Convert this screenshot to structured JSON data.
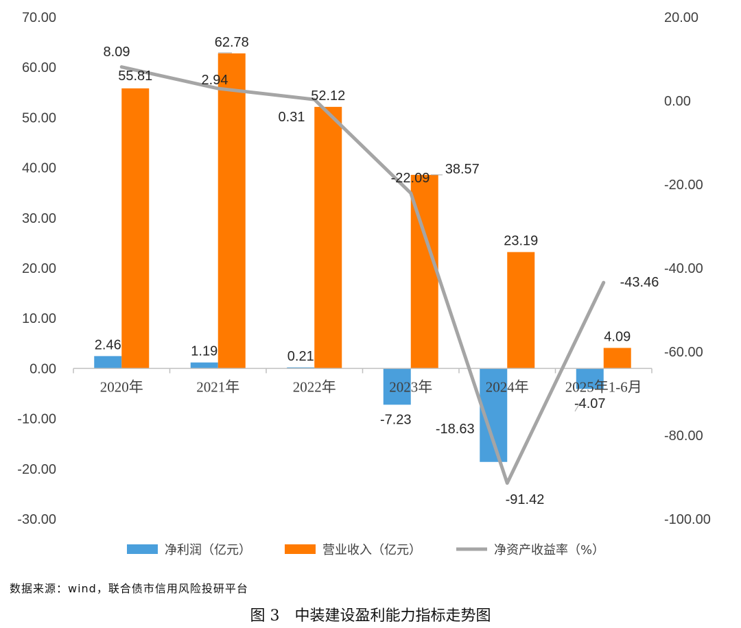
{
  "chart_data": {
    "type": "bar+line",
    "categories": [
      "2020年",
      "2021年",
      "2022年",
      "2023年",
      "2024年",
      "2025年1-6月"
    ],
    "series": [
      {
        "name": "净利润（亿元）",
        "type": "bar",
        "axis": "left",
        "color": "#4A9FDC",
        "values": [
          2.46,
          1.19,
          0.21,
          -7.23,
          -18.63,
          -4.07
        ]
      },
      {
        "name": "营业收入（亿元）",
        "type": "bar",
        "axis": "left",
        "color": "#FF7A00",
        "values": [
          55.81,
          62.78,
          52.12,
          38.57,
          23.19,
          4.09
        ]
      },
      {
        "name": "净资产收益率（%）",
        "type": "line",
        "axis": "right",
        "color": "#A5A5A5",
        "values": [
          8.09,
          2.94,
          0.31,
          -22.09,
          -91.42,
          -43.46
        ]
      }
    ],
    "y_left": {
      "min": -30,
      "max": 70,
      "step": 10,
      "ticks": [
        "70.00",
        "60.00",
        "50.00",
        "40.00",
        "30.00",
        "20.00",
        "10.00",
        "0.00",
        "-10.00",
        "-20.00",
        "-30.00"
      ]
    },
    "y_right": {
      "min": -100,
      "max": 20,
      "step": 20,
      "ticks": [
        "20.00",
        "0.00",
        "-20.00",
        "-40.00",
        "-60.00",
        "-80.00",
        "-100.00"
      ]
    },
    "gridlines": false,
    "legend_position": "bottom"
  },
  "source_text": "数据来源：wind，联合债市信用风险投研平台",
  "caption": "图 3　中装建设盈利能力指标走势图"
}
